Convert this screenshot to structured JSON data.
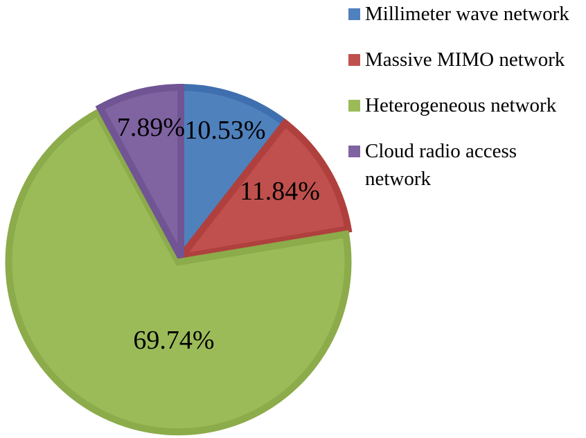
{
  "chart_data": {
    "type": "pie",
    "start": "12 o'clock",
    "direction": "clockwise",
    "categories": [
      "Millimeter wave network",
      "Massive MIMO network",
      "Heterogeneous network",
      "Cloud radio access network"
    ],
    "values": [
      10.53,
      11.84,
      69.74,
      7.89
    ],
    "value_labels": [
      "10.53%",
      "11.84%",
      "69.74%",
      "7.89%"
    ],
    "colors": [
      "#4F81BD",
      "#C0504D",
      "#9BBB59",
      "#8064A2"
    ],
    "border_colors": [
      "#3F6FAE",
      "#B0403D",
      "#8CAB4A",
      "#705494"
    ],
    "legend_position": "right",
    "title": ""
  }
}
